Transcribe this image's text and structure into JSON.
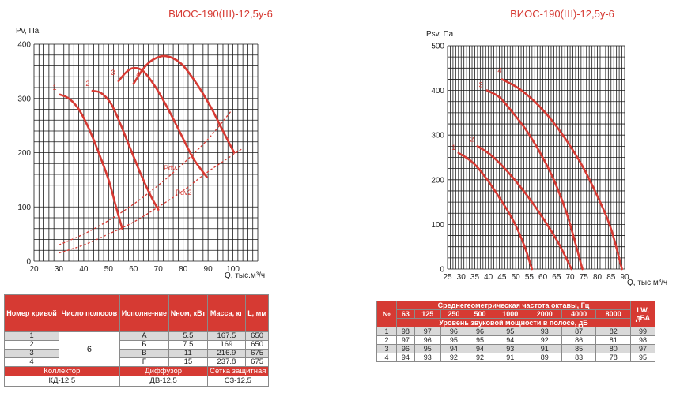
{
  "chart_data": [
    {
      "type": "line",
      "title": "ВИОС-190(Ш)-12,5у-6",
      "ylabel": "Pv, Па",
      "xlabel": "Q, тыс.м³/ч",
      "xlim": [
        20,
        110
      ],
      "ylim": [
        0,
        400
      ],
      "xticks": [
        "20",
        "30",
        "40",
        "50",
        "60",
        "70",
        "80",
        "90",
        "100"
      ],
      "yticks": [
        "0",
        "100",
        "200",
        "300",
        "400"
      ],
      "grid": true,
      "series": [
        {
          "name": "1",
          "x": [
            30.5,
            34,
            38,
            42,
            46,
            50,
            53,
            55.5
          ],
          "y": [
            307,
            300,
            280,
            245,
            200,
            150,
            100,
            60
          ]
        },
        {
          "name": "2",
          "x": [
            43.5,
            47,
            51,
            55,
            59,
            63,
            67,
            70
          ],
          "y": [
            314,
            310,
            290,
            250,
            205,
            160,
            120,
            95
          ]
        },
        {
          "name": "3",
          "x": [
            54,
            57,
            60,
            64,
            69,
            74,
            79,
            84,
            89.5
          ],
          "y": [
            332,
            348,
            356,
            350,
            320,
            280,
            235,
            190,
            155
          ]
        },
        {
          "name": "4",
          "x": [
            60,
            64,
            68,
            73,
            79,
            85,
            91,
            96,
            100.5
          ],
          "y": [
            327,
            355,
            372,
            378,
            365,
            330,
            285,
            240,
            200
          ]
        }
      ],
      "dashed_series": [
        {
          "name": "Pdv",
          "x": [
            30,
            40,
            50,
            60,
            70,
            80,
            90,
            99.5
          ],
          "y": [
            30,
            50,
            75,
            105,
            140,
            180,
            225,
            278
          ]
        },
        {
          "name": "Pdv2",
          "x": [
            30,
            40,
            50,
            60,
            70,
            80,
            90,
            104
          ],
          "y": [
            15,
            30,
            50,
            72,
            100,
            130,
            165,
            208
          ]
        }
      ]
    },
    {
      "type": "line",
      "title": "ВИОС-190(Ш)-12,5у-6",
      "ylabel": "Psv, Па",
      "xlabel": "Q, тыс.м³/ч",
      "xlim": [
        25,
        90
      ],
      "ylim": [
        0,
        500
      ],
      "xticks": [
        "25",
        "30",
        "35",
        "40",
        "45",
        "50",
        "55",
        "60",
        "65",
        "70",
        "75",
        "80",
        "85",
        "90"
      ],
      "yticks": [
        "0",
        "100",
        "200",
        "300",
        "400",
        "500"
      ],
      "grid": true,
      "series": [
        {
          "name": "1",
          "x": [
            29,
            34,
            39,
            44,
            49,
            53,
            56
          ],
          "y": [
            260,
            240,
            205,
            160,
            110,
            55,
            0
          ]
        },
        {
          "name": "2",
          "x": [
            36,
            41,
            46,
            51,
            56,
            61,
            66,
            70.5
          ],
          "y": [
            275,
            255,
            225,
            190,
            150,
            105,
            55,
            0
          ]
        },
        {
          "name": "3",
          "x": [
            39.5,
            44,
            49,
            54,
            59,
            64,
            69,
            74.5
          ],
          "y": [
            400,
            385,
            350,
            310,
            260,
            200,
            120,
            0
          ]
        },
        {
          "name": "4",
          "x": [
            45,
            51,
            57,
            63,
            69,
            75,
            81,
            85,
            89
          ],
          "y": [
            425,
            405,
            375,
            335,
            285,
            225,
            150,
            90,
            0
          ]
        }
      ]
    }
  ],
  "table1": {
    "headers": [
      "Номер кривой",
      "Число полюсов",
      "Исполне-ние",
      "Nном, кВт",
      "Масса, кг",
      "L, мм"
    ],
    "poles": "6",
    "rows": [
      {
        "num": "1",
        "exec": "А",
        "power": "5.5",
        "mass": "167.5",
        "length": "650"
      },
      {
        "num": "2",
        "exec": "Б",
        "power": "7.5",
        "mass": "169",
        "length": "650"
      },
      {
        "num": "3",
        "exec": "В",
        "power": "11",
        "mass": "216.9",
        "length": "675"
      },
      {
        "num": "4",
        "exec": "Г",
        "power": "15",
        "mass": "237.8",
        "length": "675"
      }
    ],
    "accessories_headers": [
      "Коллектор",
      "Диффузор",
      "Сетка защитная"
    ],
    "accessories_values": [
      "КД-12,5",
      "ДВ-12,5",
      "СЗ-12,5"
    ]
  },
  "table2": {
    "num_header": "№",
    "freq_header": "Среднегеометрическая частота октавы, Гц",
    "frequencies": [
      "63",
      "125",
      "250",
      "500",
      "1000",
      "2000",
      "4000",
      "8000"
    ],
    "level_header": "Уровень звуковой мощности в полосе, дБ",
    "lw_header": "LW, дБА",
    "rows": [
      {
        "num": "1",
        "values": [
          "98",
          "97",
          "96",
          "96",
          "95",
          "93",
          "87",
          "82"
        ],
        "lw": "99"
      },
      {
        "num": "2",
        "values": [
          "97",
          "96",
          "95",
          "95",
          "94",
          "92",
          "86",
          "81"
        ],
        "lw": "98"
      },
      {
        "num": "3",
        "values": [
          "96",
          "95",
          "94",
          "94",
          "93",
          "91",
          "85",
          "80"
        ],
        "lw": "97"
      },
      {
        "num": "4",
        "values": [
          "94",
          "93",
          "92",
          "92",
          "91",
          "89",
          "83",
          "78"
        ],
        "lw": "95"
      }
    ]
  }
}
